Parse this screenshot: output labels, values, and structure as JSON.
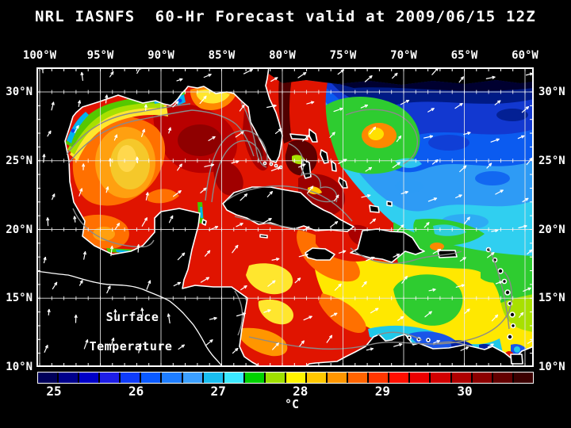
{
  "title": "NRL IASNFS  60-Hr Forecast valid at 2009/06/15 12Z",
  "map": {
    "top_axis_labels": [
      "100°W",
      "95°W",
      "90°W",
      "85°W",
      "80°W",
      "75°W",
      "70°W",
      "65°W",
      "60°W"
    ],
    "left_axis_labels": [
      "30°N",
      "25°N",
      "20°N",
      "15°N",
      "10°N"
    ],
    "right_axis_labels": [
      "30°N",
      "25°N",
      "20°N",
      "15°N",
      "10°N"
    ],
    "overlay_label": {
      "line1": "Surface",
      "line2": "Temperature"
    }
  },
  "colorbar": {
    "unit": "°C",
    "tick_labels": [
      "25",
      "26",
      "27",
      "28",
      "29",
      "30"
    ],
    "min_c": 24.75,
    "max_c": 30.75,
    "step_c": 0.25,
    "segment_colors": [
      "#00005A",
      "#00008C",
      "#0000C8",
      "#1E1EE6",
      "#0F3CFA",
      "#0A5AFF",
      "#1E7DFF",
      "#3CA0FF",
      "#19BEF0",
      "#3CE8FF",
      "#00D200",
      "#A0E000",
      "#FFF500",
      "#FFC800",
      "#FF9600",
      "#FF6400",
      "#FF3700",
      "#FF0F00",
      "#EB0000",
      "#D20000",
      "#AF0000",
      "#8C0000",
      "#640000",
      "#3C0000"
    ]
  },
  "chart_data": {
    "type": "heatmap",
    "title": "NRL IASNFS 60-Hr Forecast valid at 2009/06/15 12Z",
    "variable": "Sea Surface Temperature",
    "unit": "°C",
    "lon_axis_deg_w": [
      100,
      95,
      90,
      85,
      80,
      75,
      70,
      65,
      60
    ],
    "lat_axis_deg_n": [
      30,
      25,
      20,
      15,
      10
    ],
    "colorbar_ticks_c": [
      25,
      26,
      27,
      28,
      29,
      30
    ],
    "colorbar_range_c": [
      24.75,
      30.75
    ],
    "legend_position": "bottom",
    "grid": true,
    "overlays": [
      "white wind vectors",
      "gray front/current contours",
      "white coastlines"
    ],
    "regions": [
      {
        "area": "Gulf of Mexico interior",
        "approx_c": "29.5-30.5 (red / dark red)"
      },
      {
        "area": "Western Gulf warm eddy",
        "approx_c": "28-28.5 (yellow core, orange ring)"
      },
      {
        "area": "Texas-Louisiana shelf",
        "approx_c": "27-28 (green/yellow band, cyan at coast)"
      },
      {
        "area": "Gulf Stream off east Florida",
        "approx_c": ">30.5 (dark maroon)"
      },
      {
        "area": "Bahamas banks",
        "approx_c": "30-30.7 (dark red patches)"
      },
      {
        "area": "NW Atlantic (NE corner, ~30N)",
        "approx_c": "24.8-25.5 (near-black navy)"
      },
      {
        "area": "Central Atlantic 25-20N",
        "approx_c": "26-27 (blue to cyan)"
      },
      {
        "area": "Tropical Atlantic east of Antilles",
        "approx_c": "27.5-28 (green to yellow-green)"
      },
      {
        "area": "Central Caribbean",
        "approx_c": "28 (yellow with green patches)"
      },
      {
        "area": "Venezuela coastal upwelling",
        "approx_c": "25.5-27 (blue/cyan patches)"
      },
      {
        "area": "Western Caribbean / Yucatan",
        "approx_c": "29-29.5 (red/orange)"
      }
    ]
  }
}
